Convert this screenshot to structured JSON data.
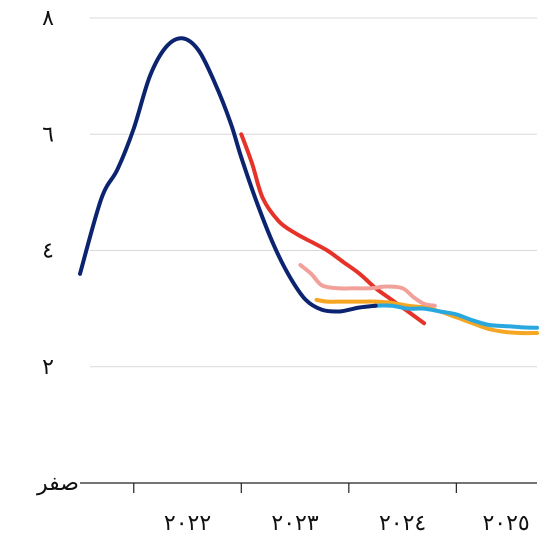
{
  "chart_data": {
    "type": "line",
    "title": "",
    "xlabel": "",
    "ylabel": "",
    "ylim": [
      0,
      8
    ],
    "xlim": [
      2021.5,
      2025.75
    ],
    "y_ticks": [
      {
        "value": 0,
        "label": "صفر"
      },
      {
        "value": 2,
        "label": "٢"
      },
      {
        "value": 4,
        "label": "٤"
      },
      {
        "value": 6,
        "label": "٦"
      },
      {
        "value": 8,
        "label": "٨"
      }
    ],
    "x_ticks": [
      {
        "value": 2022,
        "label": "٢٠٢٢"
      },
      {
        "value": 2023,
        "label": "٢٠٢٣"
      },
      {
        "value": 2024,
        "label": "٢٠٢٤"
      },
      {
        "value": 2025,
        "label": "٢٠٢٥"
      }
    ],
    "grid": true,
    "legend": "none",
    "series": [
      {
        "color": "#e63329",
        "x": [
          2023.0,
          2023.1,
          2023.2,
          2023.35,
          2023.5,
          2023.65,
          2023.8,
          2023.95,
          2024.1,
          2024.25,
          2024.4,
          2024.55,
          2024.7
        ],
        "y": [
          6.0,
          5.5,
          4.9,
          4.5,
          4.3,
          4.15,
          4.0,
          3.8,
          3.6,
          3.35,
          3.15,
          2.95,
          2.75
        ]
      },
      {
        "color": "#f2a19a",
        "x": [
          2023.55,
          2023.65,
          2023.75,
          2023.9,
          2024.05,
          2024.2,
          2024.35,
          2024.5,
          2024.6,
          2024.7,
          2024.8
        ],
        "y": [
          3.75,
          3.6,
          3.4,
          3.35,
          3.35,
          3.35,
          3.38,
          3.35,
          3.2,
          3.08,
          3.05
        ]
      },
      {
        "color": "#f5a623",
        "x": [
          2023.7,
          2023.8,
          2023.95,
          2024.1,
          2024.25,
          2024.4,
          2024.55,
          2024.7,
          2024.85,
          2025.0,
          2025.15,
          2025.3,
          2025.45,
          2025.6,
          2025.75
        ],
        "y": [
          3.15,
          3.12,
          3.12,
          3.12,
          3.12,
          3.1,
          3.05,
          3.02,
          2.95,
          2.85,
          2.75,
          2.65,
          2.6,
          2.58,
          2.58
        ]
      },
      {
        "color": "#29a8e0",
        "x": [
          2024.25,
          2024.4,
          2024.55,
          2024.7,
          2024.85,
          2025.0,
          2025.15,
          2025.3,
          2025.45,
          2025.6,
          2025.75
        ],
        "y": [
          3.05,
          3.05,
          3.0,
          3.0,
          2.95,
          2.9,
          2.8,
          2.72,
          2.7,
          2.68,
          2.67
        ]
      },
      {
        "color": "#0c2470",
        "x": [
          2021.5,
          2021.7,
          2021.85,
          2022.0,
          2022.15,
          2022.3,
          2022.45,
          2022.6,
          2022.75,
          2022.9,
          2023.0,
          2023.15,
          2023.3,
          2023.45,
          2023.6,
          2023.75,
          2023.9,
          2024.0,
          2024.1,
          2024.25
        ],
        "y": [
          3.6,
          4.9,
          5.4,
          6.1,
          7.0,
          7.5,
          7.65,
          7.45,
          6.9,
          6.2,
          5.6,
          4.8,
          4.1,
          3.55,
          3.15,
          2.98,
          2.95,
          2.98,
          3.02,
          3.05
        ]
      }
    ]
  }
}
